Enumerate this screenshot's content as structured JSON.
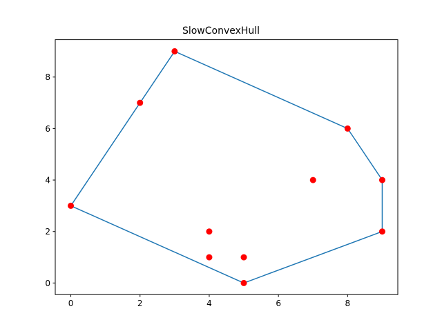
{
  "chart_data": {
    "type": "scatter",
    "title": "SlowConvexHull",
    "xlabel": "",
    "ylabel": "",
    "xlim": [
      -0.45,
      9.45
    ],
    "ylim": [
      -0.45,
      9.45
    ],
    "xticks": [
      0,
      2,
      4,
      6,
      8
    ],
    "yticks": [
      0,
      2,
      4,
      6,
      8
    ],
    "grid": false,
    "points": {
      "color": "#ff0000",
      "x": [
        3,
        2,
        0,
        4,
        4,
        5,
        5,
        7,
        8,
        9,
        9
      ],
      "y": [
        9,
        7,
        3,
        2,
        1,
        1,
        0,
        4,
        6,
        4,
        2
      ]
    },
    "hull": {
      "color": "#1f77b4",
      "x": [
        3,
        2,
        0,
        5,
        9,
        9,
        8,
        3,
        2,
        0
      ],
      "y": [
        9,
        7,
        3,
        0,
        2,
        4,
        6,
        9,
        7,
        3
      ]
    }
  }
}
